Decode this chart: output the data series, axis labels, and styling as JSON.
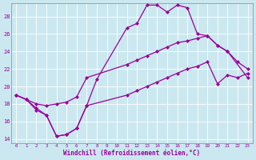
{
  "background_color": "#cbe8f0",
  "grid_color": "#b0d8e0",
  "line_color": "#990099",
  "xlabel": "Windchill (Refroidissement éolien,°C)",
  "xlim": [
    -0.5,
    23.5
  ],
  "ylim": [
    13.5,
    29.5
  ],
  "xticks": [
    0,
    1,
    2,
    3,
    4,
    5,
    6,
    7,
    8,
    9,
    10,
    11,
    12,
    13,
    14,
    15,
    16,
    17,
    18,
    19,
    20,
    21,
    22,
    23
  ],
  "yticks": [
    14,
    16,
    18,
    20,
    22,
    24,
    26,
    28
  ],
  "top_x": [
    0,
    1,
    2,
    3,
    4,
    5,
    6,
    7,
    8,
    11,
    12,
    13,
    14,
    15,
    16,
    17,
    18,
    19,
    20,
    21,
    22,
    23
  ],
  "top_y": [
    19,
    18.5,
    17.5,
    16.7,
    14.3,
    14.5,
    15.2,
    17.8,
    20.8,
    26.7,
    27.2,
    29.3,
    29.3,
    28.5,
    29.3,
    29.0,
    26.0,
    25.8,
    24.7,
    24.0,
    22.8,
    22.0
  ],
  "mid_x": [
    0,
    1,
    2,
    3,
    4,
    5,
    6,
    7,
    11,
    12,
    13,
    14,
    15,
    16,
    17,
    18,
    19,
    20,
    21,
    23
  ],
  "mid_y": [
    19,
    18.5,
    18.0,
    17.8,
    18.0,
    18.2,
    18.8,
    21.0,
    22.5,
    23.0,
    23.5,
    24.0,
    24.5,
    25.0,
    25.2,
    25.5,
    25.8,
    24.7,
    24.0,
    21.0
  ],
  "bot_x": [
    0,
    1,
    2,
    3,
    4,
    5,
    6,
    7,
    11,
    12,
    13,
    14,
    15,
    16,
    17,
    18,
    19,
    20,
    21,
    22,
    23
  ],
  "bot_y": [
    19,
    18.5,
    17.3,
    16.7,
    14.3,
    14.5,
    15.2,
    17.8,
    19.0,
    19.5,
    20.0,
    20.5,
    21.0,
    21.5,
    22.0,
    22.3,
    22.8,
    20.3,
    21.3,
    21.0,
    21.5
  ]
}
